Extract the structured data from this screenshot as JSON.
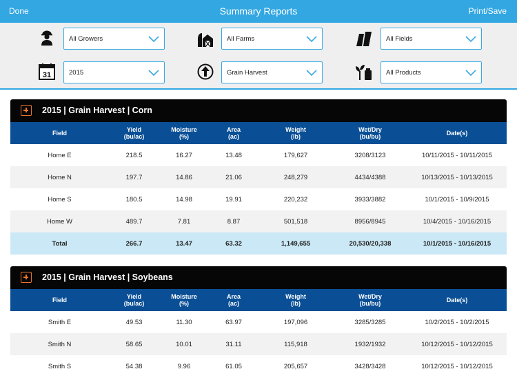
{
  "topbar": {
    "done": "Done",
    "title": "Summary Reports",
    "print": "Print/Save"
  },
  "filters": {
    "growers": "All Growers",
    "farms": "All Farms",
    "fields": "All Fields",
    "year": "2015",
    "operation": "Grain Harvest",
    "products": "All Products",
    "calendar_day": "31"
  },
  "colors": {
    "accent": "#33a7e2",
    "header_dark": "#060606",
    "table_header": "#0a4f96",
    "total_row": "#cbe8f6",
    "expand_icon": "#e8742c"
  },
  "columns": [
    {
      "l1": "Field",
      "l2": ""
    },
    {
      "l1": "Yield",
      "l2": "(bu/ac)"
    },
    {
      "l1": "Moisture",
      "l2": "(%)"
    },
    {
      "l1": "Area",
      "l2": "(ac)"
    },
    {
      "l1": "Weight",
      "l2": "(lb)"
    },
    {
      "l1": "Wet/Dry",
      "l2": "(bu/bu)"
    },
    {
      "l1": "Date(s)",
      "l2": ""
    }
  ],
  "sections": [
    {
      "title": "2015 | Grain Harvest | Corn",
      "rows": [
        [
          "Home E",
          "218.5",
          "16.27",
          "13.48",
          "179,627",
          "3208/3123",
          "10/11/2015 - 10/11/2015"
        ],
        [
          "Home N",
          "197.7",
          "14.86",
          "21.06",
          "248,279",
          "4434/4388",
          "10/13/2015 - 10/13/2015"
        ],
        [
          "Home S",
          "180.5",
          "14.98",
          "19.91",
          "220,232",
          "3933/3882",
          "10/1/2015 - 10/9/2015"
        ],
        [
          "Home W",
          "489.7",
          "7.81",
          "8.87",
          "501,518",
          "8956/8945",
          "10/4/2015 - 10/16/2015"
        ]
      ],
      "total": [
        "Total",
        "266.7",
        "13.47",
        "63.32",
        "1,149,655",
        "20,530/20,338",
        "10/1/2015 - 10/16/2015"
      ]
    },
    {
      "title": "2015 | Grain Harvest | Soybeans",
      "rows": [
        [
          "Smith E",
          "49.53",
          "11.30",
          "63.97",
          "197,096",
          "3285/3285",
          "10/2/2015 - 10/2/2015"
        ],
        [
          "Smith N",
          "58.65",
          "10.01",
          "31.11",
          "115,918",
          "1932/1932",
          "10/12/2015 - 10/12/2015"
        ],
        [
          "Smith S",
          "54.38",
          "9.96",
          "61.05",
          "205,657",
          "3428/3428",
          "10/12/2015 - 10/12/2015"
        ]
      ]
    }
  ]
}
